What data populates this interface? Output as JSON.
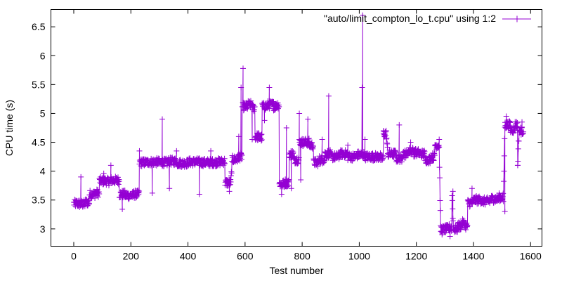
{
  "chart_data": {
    "type": "line",
    "title": "",
    "xlabel": "Test number",
    "ylabel": "CPU time (s)",
    "xlim": [
      -80,
      1640
    ],
    "ylim": [
      2.7,
      6.8
    ],
    "x_ticks": [
      0,
      200,
      400,
      600,
      800,
      1000,
      1200,
      1400,
      1600
    ],
    "y_ticks": [
      3,
      3.5,
      4,
      4.5,
      5,
      5.5,
      6,
      6.5
    ],
    "x_tick_labels": [
      "0",
      "200",
      "400",
      "600",
      "800",
      "1000",
      "1200",
      "1400",
      "1600"
    ],
    "y_tick_labels": [
      "3",
      "3.5",
      "4",
      "4.5",
      "5",
      "5.5",
      "6",
      "6.5"
    ],
    "grid": false,
    "legend_position": "top-right",
    "series": [
      {
        "name": "\"auto/limit_compton_lo_t.cpu\" using 1:2",
        "color": "#9400d3",
        "marker": "plus",
        "segments": [
          [
            0,
            3.44
          ],
          [
            20,
            3.43
          ],
          [
            40,
            3.46
          ],
          [
            55,
            3.6
          ],
          [
            75,
            3.62
          ],
          [
            90,
            3.83
          ],
          [
            115,
            3.82
          ],
          [
            130,
            3.84
          ],
          [
            145,
            3.84
          ],
          [
            160,
            3.6
          ],
          [
            180,
            3.58
          ],
          [
            210,
            3.6
          ],
          [
            230,
            4.15
          ],
          [
            260,
            4.16
          ],
          [
            300,
            4.15
          ],
          [
            330,
            4.17
          ],
          [
            360,
            4.14
          ],
          [
            400,
            4.16
          ],
          [
            440,
            4.15
          ],
          [
            470,
            4.15
          ],
          [
            500,
            4.16
          ],
          [
            520,
            4.17
          ],
          [
            530,
            3.8
          ],
          [
            550,
            3.79
          ],
          [
            555,
            4.2
          ],
          [
            575,
            4.25
          ],
          [
            590,
            5.12
          ],
          [
            610,
            5.15
          ],
          [
            625,
            5.1
          ],
          [
            635,
            4.6
          ],
          [
            650,
            4.58
          ],
          [
            660,
            5.12
          ],
          [
            680,
            5.15
          ],
          [
            700,
            5.12
          ],
          [
            710,
            5.15
          ],
          [
            720,
            3.78
          ],
          [
            740,
            3.8
          ],
          [
            755,
            4.3
          ],
          [
            770,
            4.2
          ],
          [
            790,
            4.5
          ],
          [
            810,
            4.5
          ],
          [
            825,
            4.45
          ],
          [
            840,
            4.15
          ],
          [
            860,
            4.2
          ],
          [
            880,
            4.3
          ],
          [
            900,
            4.25
          ],
          [
            930,
            4.3
          ],
          [
            960,
            4.25
          ],
          [
            990,
            4.28
          ],
          [
            1020,
            4.25
          ],
          [
            1050,
            4.25
          ],
          [
            1075,
            4.22
          ],
          [
            1085,
            4.65
          ],
          [
            1095,
            4.62
          ],
          [
            1100,
            4.3
          ],
          [
            1130,
            4.22
          ],
          [
            1150,
            4.3
          ],
          [
            1170,
            4.35
          ],
          [
            1190,
            4.32
          ],
          [
            1210,
            4.3
          ],
          [
            1230,
            4.2
          ],
          [
            1250,
            4.25
          ],
          [
            1265,
            4.45
          ],
          [
            1280,
            4.4
          ],
          [
            1285,
            2.99
          ],
          [
            1300,
            3.0
          ],
          [
            1315,
            3.02
          ],
          [
            1325,
            3.6
          ],
          [
            1330,
            3.0
          ],
          [
            1345,
            3.05
          ],
          [
            1360,
            3.1
          ],
          [
            1370,
            3.05
          ],
          [
            1380,
            3.45
          ],
          [
            1400,
            3.5
          ],
          [
            1430,
            3.48
          ],
          [
            1460,
            3.52
          ],
          [
            1490,
            3.55
          ],
          [
            1505,
            3.5
          ],
          [
            1510,
            4.8
          ],
          [
            1530,
            4.72
          ],
          [
            1545,
            4.8
          ],
          [
            1555,
            4.12
          ],
          [
            1560,
            4.7
          ],
          [
            1575,
            4.68
          ]
        ],
        "spikes": [
          [
            25,
            3.9
          ],
          [
            105,
            3.96
          ],
          [
            130,
            4.1
          ],
          [
            170,
            3.34
          ],
          [
            230,
            4.35
          ],
          [
            275,
            3.62
          ],
          [
            310,
            4.9
          ],
          [
            335,
            3.7
          ],
          [
            360,
            4.35
          ],
          [
            440,
            3.6
          ],
          [
            480,
            4.35
          ],
          [
            545,
            3.65
          ],
          [
            578,
            4.6
          ],
          [
            586,
            5.45
          ],
          [
            593,
            5.78
          ],
          [
            625,
            4.55
          ],
          [
            668,
            4.88
          ],
          [
            685,
            5.45
          ],
          [
            700,
            5.2
          ],
          [
            728,
            3.6
          ],
          [
            745,
            4.75
          ],
          [
            762,
            3.7
          ],
          [
            790,
            5.0
          ],
          [
            795,
            3.85
          ],
          [
            820,
            4.9
          ],
          [
            870,
            4.55
          ],
          [
            893,
            5.3
          ],
          [
            960,
            4.45
          ],
          [
            1010,
            5.45
          ],
          [
            1012,
            6.7
          ],
          [
            1020,
            4.55
          ],
          [
            1085,
            4.7
          ],
          [
            1140,
            4.8
          ],
          [
            1180,
            4.5
          ],
          [
            1235,
            4.2
          ],
          [
            1280,
            4.55
          ],
          [
            1290,
            2.9
          ],
          [
            1318,
            2.87
          ],
          [
            1328,
            3.65
          ],
          [
            1345,
            3.0
          ],
          [
            1395,
            3.7
          ],
          [
            1500,
            3.5
          ],
          [
            1510,
            3.3
          ],
          [
            1515,
            4.95
          ],
          [
            1555,
            4.1
          ],
          [
            1570,
            4.85
          ]
        ]
      }
    ]
  }
}
